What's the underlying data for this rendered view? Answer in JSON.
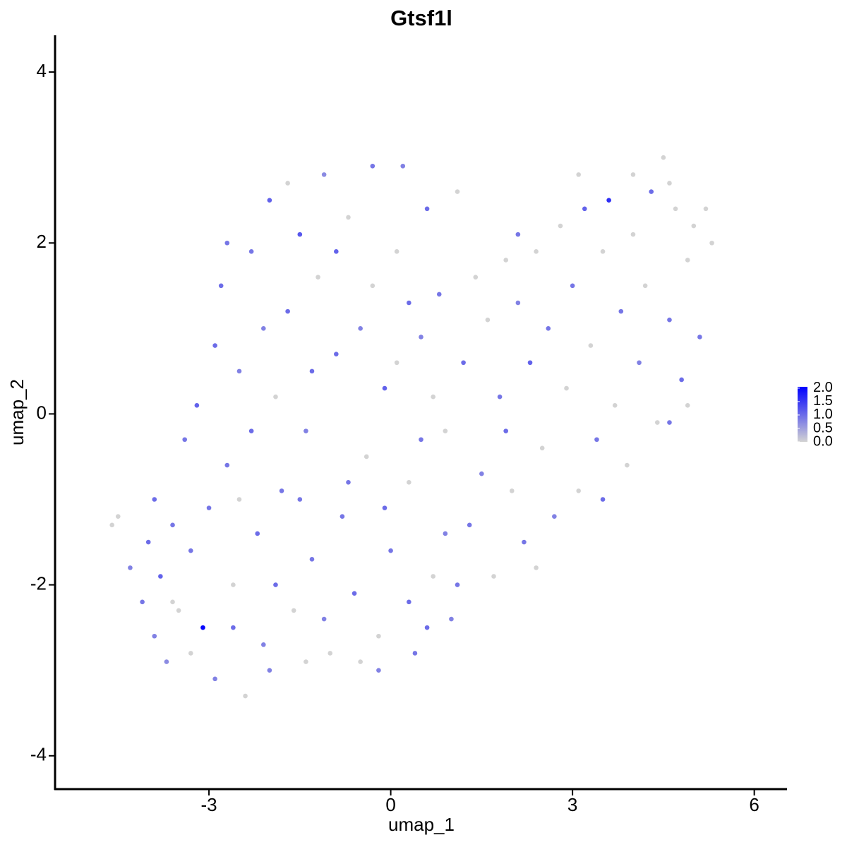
{
  "chart_data": {
    "type": "scatter",
    "title": "Gtsf1l",
    "xlabel": "umap_1",
    "ylabel": "umap_2",
    "xlim": [
      -5.54,
      6.54
    ],
    "ylim": [
      -4.39,
      4.43
    ],
    "xticks": [
      -3,
      0,
      3,
      6
    ],
    "yticks": [
      -4,
      -2,
      0,
      2,
      4
    ],
    "color_low": "#d3d3d3",
    "color_high": "#0000ff",
    "color_lim": [
      0,
      2.05
    ],
    "color_ticks": [
      {
        "value": 0,
        "label": "0.0"
      },
      {
        "value": 0.5,
        "label": "0.5"
      },
      {
        "value": 1,
        "label": "1.0"
      },
      {
        "value": 1.5,
        "label": "1.5"
      },
      {
        "value": 2,
        "label": "2.0"
      }
    ],
    "x": [
      -4.6,
      -4.5,
      -4.3,
      -4.1,
      -4.0,
      -3.9,
      -3.8,
      -3.7,
      -3.6,
      -3.5,
      -3.4,
      -3.3,
      -3.2,
      -3.1,
      -3.0,
      -2.9,
      -2.8,
      -2.7,
      -2.6,
      -2.5,
      -2.4,
      -2.3,
      -2.2,
      -2.1,
      -2.0,
      -1.9,
      -1.8,
      -1.7,
      -1.6,
      -1.5,
      -1.4,
      -1.3,
      -1.2,
      -1.1,
      -1.0,
      -0.9,
      -0.8,
      -0.7,
      -0.6,
      -0.5,
      -0.4,
      -0.3,
      -0.2,
      -0.1,
      0,
      0.1,
      0.2,
      0.3,
      0.4,
      0.5,
      0.6,
      0.7,
      0.8,
      0.9,
      1.0,
      1.1,
      1.2,
      1.3,
      1.4,
      1.5,
      1.6,
      1.7,
      1.8,
      1.9,
      2.0,
      2.1,
      2.2,
      2.3,
      2.4,
      2.5,
      2.6,
      2.7,
      2.8,
      2.9,
      3.0,
      3.1,
      3.2,
      3.3,
      3.4,
      3.5,
      3.6,
      3.7,
      3.8,
      3.9,
      4.0,
      4.1,
      4.2,
      4.3,
      4.4,
      4.5,
      4.6,
      4.7,
      4.8,
      4.9,
      5.0,
      5.1,
      5.2,
      5.3,
      -3.9,
      -3.3,
      -2.9,
      -2.7,
      -2.5,
      -2.3,
      -2.1,
      -1.9,
      -1.7,
      -1.5,
      -1.3,
      -1.1,
      -0.9,
      -0.7,
      -0.5,
      -0.3,
      -0.1,
      0.1,
      0.3,
      0.5,
      0.7,
      0.9,
      1.1,
      0.3,
      -2.6,
      -3.6,
      -2.0,
      -1.4,
      -0.2,
      0.6,
      1.9,
      2.4,
      3.5,
      4.6,
      4.9,
      3.1,
      2.1,
      4.0,
      4.6
    ],
    "y": [
      -1.3,
      -1.2,
      -1.8,
      -2.2,
      -1.5,
      -2.6,
      -1.9,
      -2.9,
      -1.3,
      -2.3,
      -0.3,
      -2.8,
      0.1,
      -2.5,
      -1.1,
      -3.1,
      1.5,
      -0.6,
      -2.0,
      0.5,
      -3.3,
      1.9,
      -1.4,
      -2.7,
      2.5,
      0.2,
      -0.9,
      1.2,
      -2.3,
      2.1,
      -0.2,
      -1.7,
      1.6,
      2.8,
      -2.8,
      0.7,
      -1.2,
      2.3,
      -2.1,
      1.0,
      -0.5,
      2.9,
      -2.6,
      0.3,
      -1.6,
      1.9,
      2.9,
      -0.8,
      -2.8,
      0.9,
      2.4,
      -1.9,
      1.4,
      -0.2,
      -2.4,
      2.6,
      0.6,
      -1.3,
      1.6,
      -0.7,
      1.1,
      -1.9,
      0.2,
      1.8,
      -0.9,
      1.3,
      -1.5,
      0.6,
      1.9,
      -0.4,
      1.0,
      -1.2,
      2.2,
      0.3,
      1.5,
      -0.9,
      2.4,
      0.8,
      -0.3,
      1.9,
      2.5,
      0.1,
      1.2,
      -0.6,
      2.1,
      0.6,
      1.5,
      2.6,
      -0.1,
      3.0,
      1.1,
      2.4,
      0.4,
      1.8,
      2.2,
      0.9,
      2.4,
      2.0,
      -1.0,
      -1.6,
      0.8,
      2.0,
      -1.0,
      -0.2,
      1.0,
      -2.0,
      2.7,
      -1.0,
      0.5,
      -2.4,
      1.9,
      -0.8,
      -2.9,
      1.5,
      -1.1,
      0.6,
      -2.2,
      -0.3,
      0.2,
      -1.4,
      -2.0,
      1.3,
      -2.5,
      -2.2,
      -3.0,
      -2.9,
      -3.0,
      -2.5,
      -0.2,
      -1.8,
      -1.0,
      -0.1,
      0.1,
      2.8,
      2.1,
      2.8,
      2.7
    ],
    "values": [
      0,
      0,
      0.8,
      0.9,
      1.0,
      0.8,
      1.1,
      0.7,
      0.9,
      0,
      0.9,
      0,
      1.1,
      2.0,
      0.9,
      0.8,
      1.0,
      0.9,
      0,
      0.8,
      0,
      0.9,
      1.0,
      0.8,
      1.1,
      0,
      0.9,
      1.0,
      0,
      1.2,
      0.8,
      0.9,
      0,
      0.7,
      0,
      1.0,
      0.9,
      0,
      1.0,
      0.8,
      0,
      0.9,
      0,
      1.1,
      0.9,
      0,
      0.8,
      0,
      0.9,
      0.8,
      1.0,
      0,
      0.9,
      0,
      0.8,
      0,
      1.0,
      0.9,
      0,
      0.8,
      0,
      0,
      0.9,
      0,
      0,
      0.8,
      0.9,
      1.1,
      0,
      0,
      0.9,
      0.8,
      0,
      0,
      0.9,
      0,
      1.1,
      0,
      0.9,
      0,
      1.6,
      0,
      0.9,
      0,
      0,
      0.8,
      0,
      1.0,
      0,
      0,
      0.9,
      0,
      1.0,
      0,
      0,
      0.9,
      0,
      0,
      1.0,
      0.9,
      1.0,
      0.9,
      0,
      1.0,
      0.8,
      1.0,
      0,
      0.9,
      1.0,
      0.8,
      1.1,
      0.9,
      0,
      0,
      1.0,
      0,
      1.0,
      0.9,
      0,
      0.8,
      0.9,
      1.0,
      1.0,
      0,
      0.8,
      0,
      0.8,
      1.0,
      1.0,
      0,
      1.0,
      0.9,
      0,
      0,
      0.9,
      0,
      0
    ]
  }
}
